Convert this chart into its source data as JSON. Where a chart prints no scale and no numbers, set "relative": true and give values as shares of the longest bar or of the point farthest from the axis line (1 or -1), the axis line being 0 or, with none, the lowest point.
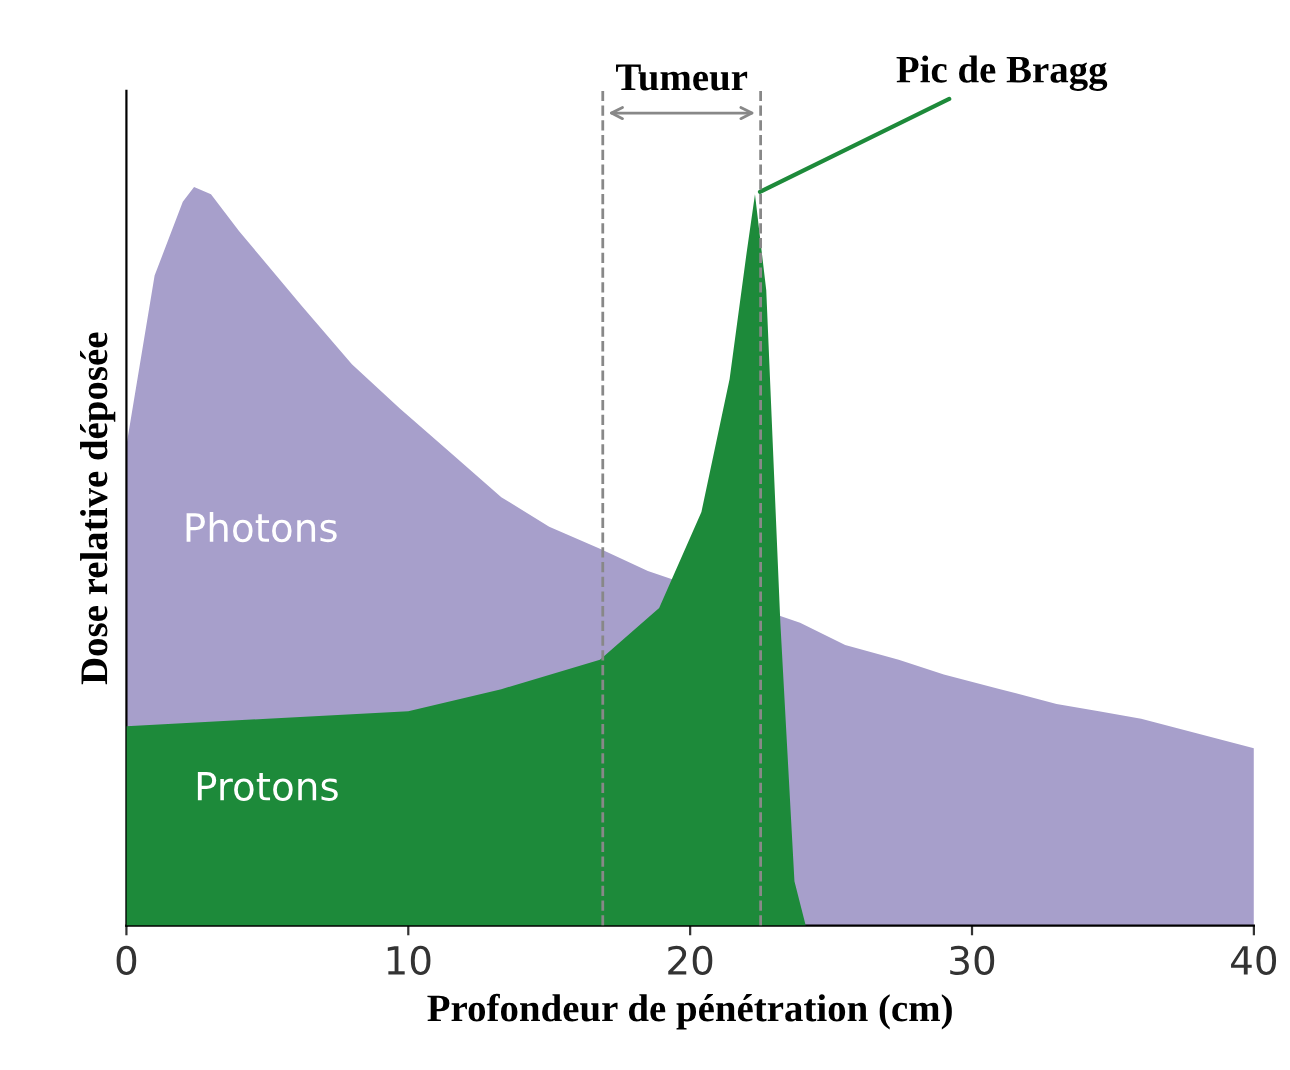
{
  "chart_data": {
    "type": "area",
    "relative": true,
    "xlabel": "Profondeur de pénétration (cm)",
    "ylabel": "Dose relative déposée",
    "xlim": [
      0,
      40
    ],
    "xticks": [
      0,
      10,
      20,
      30,
      40
    ],
    "grid": false,
    "series": [
      {
        "name": "Photons",
        "color": "#a79fcb",
        "x": [
          0,
          1,
          2,
          2.4,
          3,
          4,
          6.2,
          8,
          9.7,
          11.5,
          13.3,
          15,
          16.8,
          18.5,
          23.9,
          25.5,
          27.4,
          29,
          31,
          33,
          34.5,
          36,
          38,
          40
        ],
        "values": [
          0.65,
          0.88,
          0.98,
          1.0,
          0.99,
          0.94,
          0.84,
          0.76,
          0.7,
          0.64,
          0.58,
          0.54,
          0.51,
          0.48,
          0.41,
          0.38,
          0.36,
          0.34,
          0.32,
          0.3,
          0.29,
          0.28,
          0.26,
          0.24
        ]
      },
      {
        "name": "Protons",
        "color": "#1d8a3a",
        "x": [
          0,
          5,
          10,
          13.3,
          16.8,
          18.9,
          20.4,
          21.4,
          22.0,
          22.3,
          22.7,
          23.2,
          23.7,
          24.1
        ],
        "values": [
          0.27,
          0.28,
          0.29,
          0.32,
          0.36,
          0.43,
          0.56,
          0.74,
          0.91,
          0.99,
          0.86,
          0.41,
          0.06,
          0
        ]
      }
    ],
    "ref_lines": [
      {
        "axis": "x",
        "value": 16.9,
        "color": "#888888",
        "line_style": "dashed"
      },
      {
        "axis": "x",
        "value": 22.5,
        "color": "#888888",
        "line_style": "dashed"
      }
    ],
    "annotations": [
      "Tumeur",
      {
        "text": "Pic de Bragg",
        "x": 22.3,
        "y": 0.99
      }
    ]
  }
}
